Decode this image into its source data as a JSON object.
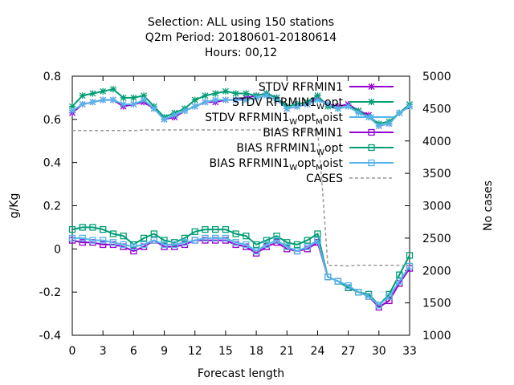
{
  "chart_data": {
    "type": "line",
    "title_lines": [
      "Selection: ALL using   150 stations",
      "Q2m   Period: 20180601-20180614",
      "Hours:  00,12"
    ],
    "xlabel": "Forecast length",
    "ylabel": "g/Kg",
    "y2label": "No cases",
    "xlim": [
      0,
      33
    ],
    "ylim": [
      -0.4,
      0.8
    ],
    "y2lim": [
      1000,
      5000
    ],
    "xticks": [
      0,
      3,
      6,
      9,
      12,
      15,
      18,
      21,
      24,
      27,
      30,
      33
    ],
    "yticks": [
      -0.4,
      -0.2,
      0,
      0.2,
      0.4,
      0.6,
      0.8
    ],
    "y2ticks": [
      1000,
      1500,
      2000,
      2500,
      3000,
      3500,
      4000,
      4500,
      5000
    ],
    "grid": false,
    "legend_position": "top-right",
    "series": [
      {
        "name": "STDV RFRMIN1",
        "legend_main": "STDV RFRMIN1",
        "legend_sub": "",
        "legend_tail": "",
        "color": "#9400d3",
        "marker": "star",
        "axis": "y",
        "x": [
          0,
          1,
          2,
          3,
          4,
          5,
          6,
          7,
          8,
          9,
          10,
          11,
          12,
          13,
          14,
          15,
          16,
          17,
          18,
          19,
          20,
          21,
          22,
          23,
          24,
          25,
          26,
          27,
          28,
          29,
          30,
          31,
          32,
          33
        ],
        "y": [
          0.63,
          0.67,
          0.68,
          0.69,
          0.69,
          0.66,
          0.67,
          0.68,
          0.65,
          0.6,
          0.61,
          0.64,
          0.66,
          0.68,
          0.68,
          0.69,
          0.69,
          0.7,
          0.71,
          0.72,
          0.7,
          0.65,
          0.66,
          0.67,
          0.7,
          0.67,
          0.66,
          0.67,
          0.64,
          0.62,
          0.57,
          0.58,
          0.63,
          0.66
        ]
      },
      {
        "name": "STDV RFRMIN1_W opt",
        "legend_main": "STDV RFRMIN1",
        "legend_sub": "W",
        "legend_tail": "opt",
        "color": "#009e73",
        "marker": "xstar",
        "axis": "y",
        "x": [
          0,
          1,
          2,
          3,
          4,
          5,
          6,
          7,
          8,
          9,
          10,
          11,
          12,
          13,
          14,
          15,
          16,
          17,
          18,
          19,
          20,
          21,
          22,
          23,
          24,
          25,
          26,
          27,
          28,
          29,
          30,
          31,
          32,
          33
        ],
        "y": [
          0.66,
          0.71,
          0.72,
          0.73,
          0.74,
          0.7,
          0.7,
          0.71,
          0.66,
          0.61,
          0.63,
          0.65,
          0.69,
          0.71,
          0.72,
          0.73,
          0.72,
          0.72,
          0.71,
          0.72,
          0.7,
          0.66,
          0.67,
          0.68,
          0.71,
          0.66,
          0.65,
          0.66,
          0.64,
          0.61,
          0.58,
          0.59,
          0.63,
          0.67
        ]
      },
      {
        "name": "STDV RFRMIN1_W opt_M oist",
        "legend_main": "STDV RFRMIN1",
        "legend_sub": "W",
        "legend_tail": "opt",
        "legend_sub2": "M",
        "legend_tail2": "oist",
        "color": "#56b4e9",
        "marker": "star",
        "axis": "y",
        "x": [
          0,
          1,
          2,
          3,
          4,
          5,
          6,
          7,
          8,
          9,
          10,
          11,
          12,
          13,
          14,
          15,
          16,
          17,
          18,
          19,
          20,
          21,
          22,
          23,
          24,
          25,
          26,
          27,
          28,
          29,
          30,
          31,
          32,
          33
        ],
        "y": [
          0.64,
          0.67,
          0.68,
          0.69,
          0.69,
          0.67,
          0.67,
          0.69,
          0.65,
          0.6,
          0.62,
          0.64,
          0.66,
          0.68,
          0.69,
          0.69,
          0.69,
          0.69,
          0.7,
          0.71,
          0.69,
          0.65,
          0.66,
          0.67,
          0.69,
          0.67,
          0.65,
          0.66,
          0.63,
          0.61,
          0.57,
          0.58,
          0.63,
          0.66
        ]
      },
      {
        "name": "BIAS RFRMIN1",
        "legend_main": "BIAS RFRMIN1",
        "legend_sub": "",
        "legend_tail": "",
        "color": "#9400d3",
        "marker": "square",
        "axis": "y",
        "x": [
          0,
          1,
          2,
          3,
          4,
          5,
          6,
          7,
          8,
          9,
          10,
          11,
          12,
          13,
          14,
          15,
          16,
          17,
          18,
          19,
          20,
          21,
          22,
          23,
          24,
          25,
          26,
          27,
          28,
          29,
          30,
          31,
          32,
          33
        ],
        "y": [
          0.04,
          0.03,
          0.03,
          0.02,
          0.02,
          0.01,
          -0.01,
          0.01,
          0.04,
          0.01,
          0.01,
          0.02,
          0.04,
          0.04,
          0.04,
          0.04,
          0.02,
          0.01,
          -0.02,
          0.01,
          0.03,
          0.0,
          -0.01,
          0.0,
          0.03,
          -0.13,
          -0.15,
          -0.18,
          -0.2,
          -0.22,
          -0.27,
          -0.24,
          -0.16,
          -0.09
        ]
      },
      {
        "name": "BIAS RFRMIN1_W opt",
        "legend_main": "BIAS RFRMIN1",
        "legend_sub": "W",
        "legend_tail": "opt",
        "color": "#009e73",
        "marker": "square",
        "axis": "y",
        "x": [
          0,
          1,
          2,
          3,
          4,
          5,
          6,
          7,
          8,
          9,
          10,
          11,
          12,
          13,
          14,
          15,
          16,
          17,
          18,
          19,
          20,
          21,
          22,
          23,
          24,
          25,
          26,
          27,
          28,
          29,
          30,
          31,
          32,
          33
        ],
        "y": [
          0.09,
          0.1,
          0.1,
          0.09,
          0.07,
          0.06,
          0.02,
          0.05,
          0.07,
          0.04,
          0.03,
          0.05,
          0.08,
          0.09,
          0.09,
          0.09,
          0.07,
          0.06,
          0.02,
          0.04,
          0.06,
          0.03,
          0.02,
          0.04,
          0.07,
          -0.13,
          -0.15,
          -0.18,
          -0.2,
          -0.21,
          -0.26,
          -0.21,
          -0.12,
          -0.03
        ]
      },
      {
        "name": "BIAS RFRMIN1_W opt_M oist",
        "legend_main": "BIAS RFRMIN1",
        "legend_sub": "W",
        "legend_tail": "opt",
        "legend_sub2": "M",
        "legend_tail2": "oist",
        "color": "#56b4e9",
        "marker": "square",
        "axis": "y",
        "x": [
          0,
          1,
          2,
          3,
          4,
          5,
          6,
          7,
          8,
          9,
          10,
          11,
          12,
          13,
          14,
          15,
          16,
          17,
          18,
          19,
          20,
          21,
          22,
          23,
          24,
          25,
          26,
          27,
          28,
          29,
          30,
          31,
          32,
          33
        ],
        "y": [
          0.05,
          0.05,
          0.04,
          0.04,
          0.03,
          0.02,
          0.01,
          0.02,
          0.04,
          0.02,
          0.02,
          0.03,
          0.04,
          0.05,
          0.05,
          0.05,
          0.03,
          0.02,
          -0.01,
          0.02,
          0.04,
          0.01,
          -0.01,
          0.01,
          0.04,
          -0.13,
          -0.15,
          -0.17,
          -0.2,
          -0.22,
          -0.26,
          -0.22,
          -0.15,
          -0.08
        ]
      },
      {
        "name": "CASES",
        "legend_main": "CASES",
        "legend_sub": "",
        "legend_tail": "",
        "color": "#999999",
        "marker": "none",
        "dash": "4,3",
        "axis": "y2",
        "x": [
          0,
          3,
          6,
          7,
          9,
          12,
          15,
          18,
          21,
          24,
          24.5,
          25,
          27,
          28,
          30,
          33
        ],
        "y": [
          4160,
          4160,
          4160,
          4170,
          4170,
          4170,
          4170,
          4170,
          4170,
          4170,
          3200,
          2080,
          2070,
          2080,
          2080,
          2080
        ]
      }
    ]
  }
}
